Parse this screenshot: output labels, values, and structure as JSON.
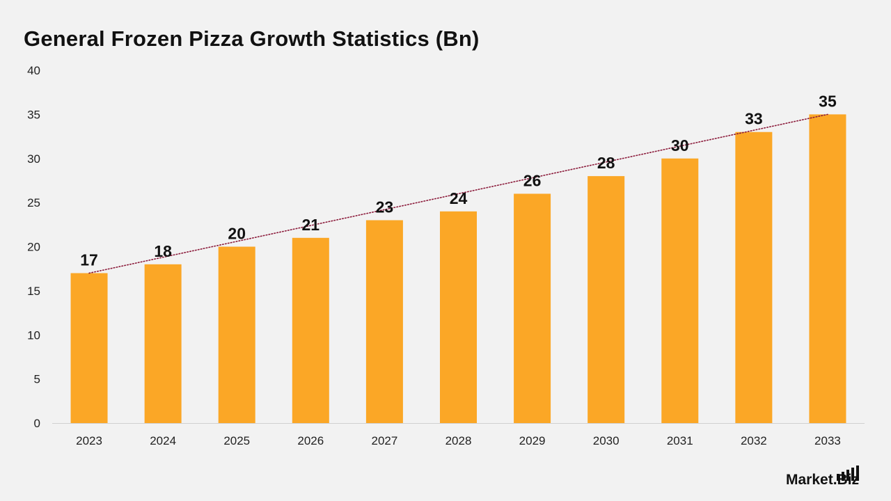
{
  "chart_data": {
    "type": "bar",
    "title": "General Frozen Pizza Growth Statistics (Bn)",
    "xlabel": "",
    "ylabel": "",
    "categories": [
      "2023",
      "2024",
      "2025",
      "2026",
      "2027",
      "2028",
      "2029",
      "2030",
      "2031",
      "2032",
      "2033"
    ],
    "values": [
      17,
      18,
      20,
      21,
      23,
      24,
      26,
      28,
      30,
      33,
      35
    ],
    "data_labels": [
      "17",
      "18",
      "20",
      "21",
      "23",
      "24",
      "26",
      "28",
      "30",
      "33",
      "35"
    ],
    "ylim": [
      0,
      40
    ],
    "yticks": [
      0,
      5,
      10,
      15,
      20,
      25,
      30,
      35,
      40
    ],
    "ytick_labels": [
      "0",
      "5",
      "10",
      "15",
      "20",
      "25",
      "30",
      "35",
      "40"
    ],
    "trendline": {
      "style": "dotted",
      "from": 17,
      "to": 35
    },
    "grid": false,
    "legend": "none",
    "colors": {
      "bar": "#FBA726",
      "trendline": "#8B1A3A",
      "axis": "#d0d0d0",
      "background": "#f2f2f2"
    }
  },
  "brand": {
    "name": "Market.Biz",
    "icon": "bar-chart-logo-icon"
  }
}
